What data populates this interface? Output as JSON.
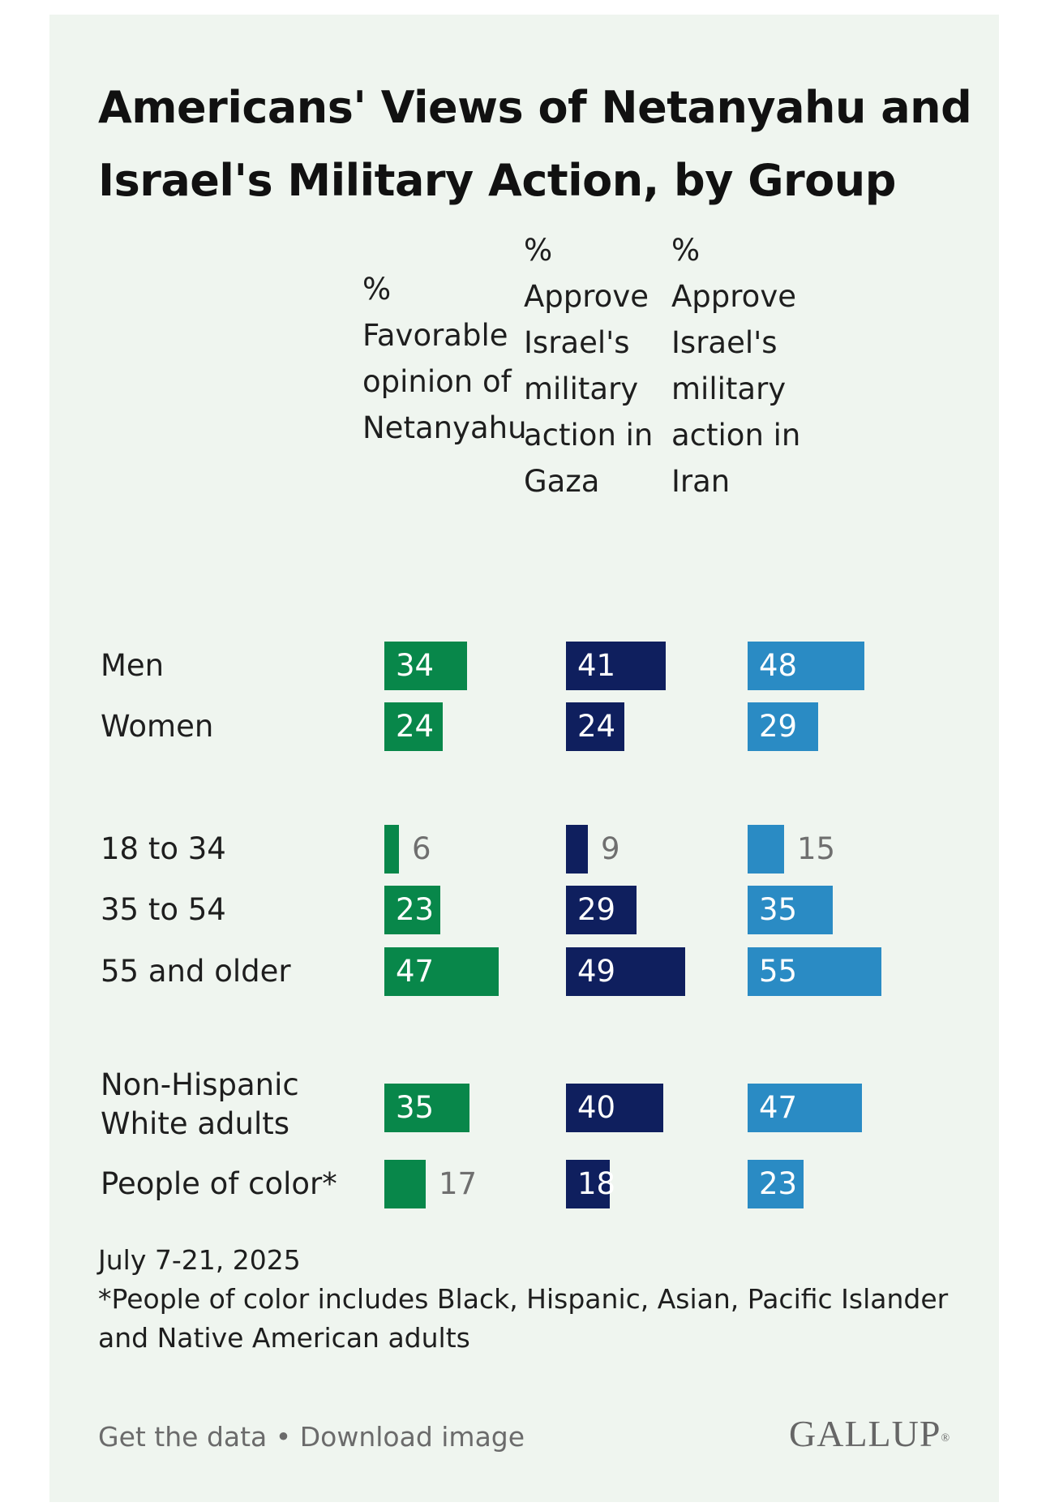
{
  "colors": {
    "background": "#eff5ef",
    "favorable": "#08874a",
    "gaza": "#0f1f5e",
    "iran": "#2a8bc4"
  },
  "chart_data": {
    "type": "bar",
    "title": "Americans' Views of Netanyahu and Israel's Military Action, by Group",
    "series": [
      {
        "name": "% Favorable opinion of Netanyahu",
        "color": "#08874a"
      },
      {
        "name": "% Approve Israel's military action in Gaza",
        "color": "#0f1f5e"
      },
      {
        "name": "% Approve Israel's military action in Iran",
        "color": "#2a8bc4"
      }
    ],
    "column_headers": [
      "%\nFavorable\nopinion of\nNetanyahu",
      "%\nApprove\nIsrael's\nmilitary\naction in\nGaza",
      "%\nApprove\nIsrael's\nmilitary\naction in\nIran"
    ],
    "groups": [
      {
        "label": "Men",
        "values": [
          34,
          41,
          48
        ]
      },
      {
        "label": "Women",
        "values": [
          24,
          24,
          29
        ]
      },
      {
        "label": "18 to 34",
        "values": [
          6,
          9,
          15
        ]
      },
      {
        "label": "35 to 54",
        "values": [
          23,
          29,
          35
        ]
      },
      {
        "label": "55 and older",
        "values": [
          47,
          49,
          55
        ]
      },
      {
        "label": "Non-Hispanic White adults",
        "values": [
          35,
          40,
          47
        ]
      },
      {
        "label": "People of color*",
        "values": [
          17,
          18,
          23
        ]
      }
    ]
  },
  "notes": {
    "date": "July 7-21, 2025",
    "footnote": "*People of color includes Black, Hispanic, Asian, Pacific Islander and Native American adults"
  },
  "links": {
    "get_data": "Get the data",
    "separator": " • ",
    "download": "Download image"
  },
  "brand": {
    "logo_text": "GALLUP",
    "logo_mark": "®"
  }
}
